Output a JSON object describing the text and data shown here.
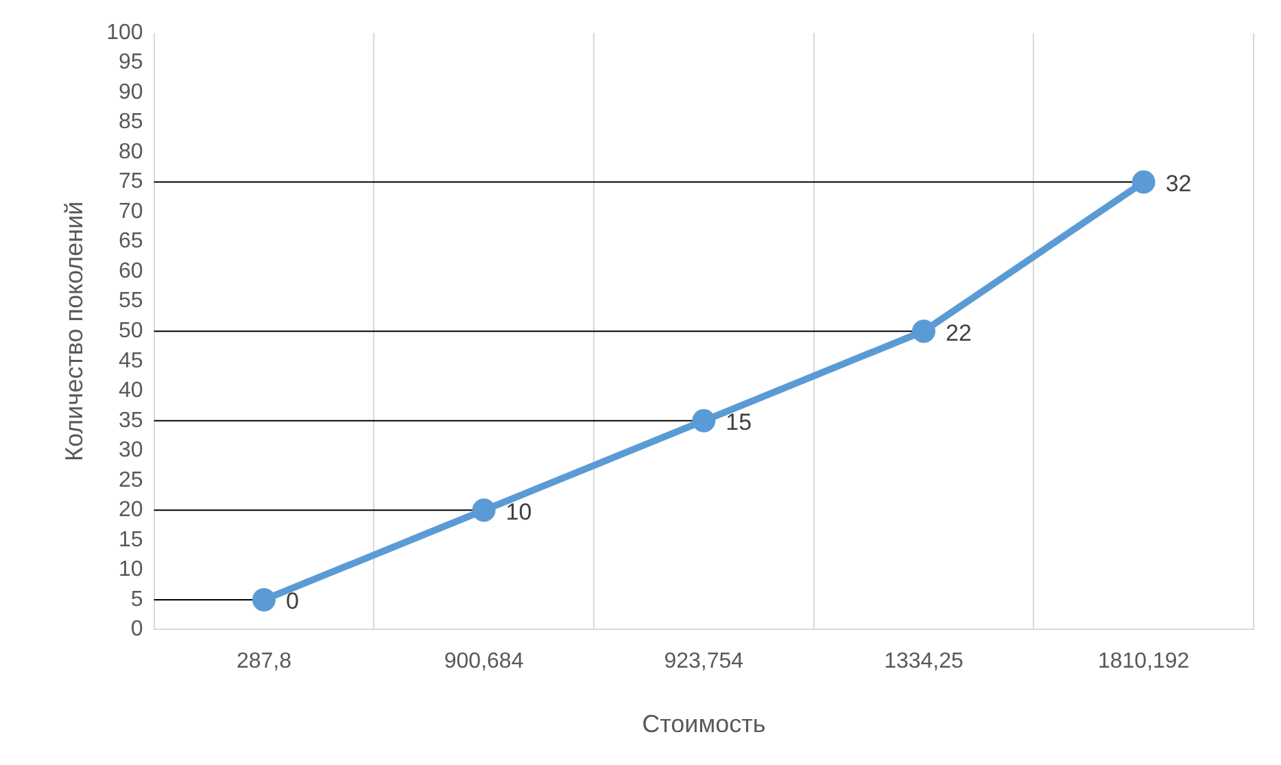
{
  "chart_data": {
    "type": "line",
    "xlabel": "Стоимость",
    "ylabel": "Количество поколений",
    "categories": [
      "287,8",
      "900,684",
      "923,754",
      "1334,25",
      "1810,192"
    ],
    "series": [
      {
        "color": "#5b9bd5",
        "values": [
          5,
          20,
          35,
          50,
          75
        ]
      }
    ],
    "annotations": [
      {
        "text": "0",
        "x": "287,8",
        "y": 5
      },
      {
        "text": "10",
        "x": "900,684",
        "y": 20
      },
      {
        "text": "15",
        "x": "923,754",
        "y": 35
      },
      {
        "text": "22",
        "x": "1334,25",
        "y": 50
      },
      {
        "text": "32",
        "x": "1810,192",
        "y": 75
      }
    ],
    "ylim": [
      0,
      100
    ],
    "yticks": [
      0,
      5,
      10,
      15,
      20,
      25,
      30,
      35,
      40,
      45,
      50,
      55,
      60,
      65,
      70,
      75,
      80,
      85,
      90,
      95,
      100
    ],
    "grid": "x",
    "legend": false,
    "marker": "circle",
    "line_style": "solid",
    "ref_lines": [
      {
        "axis": "y",
        "value": 5,
        "color": "#000000"
      },
      {
        "axis": "y",
        "value": 20,
        "color": "#000000"
      },
      {
        "axis": "y",
        "value": 35,
        "color": "#000000"
      },
      {
        "axis": "y",
        "value": 50,
        "color": "#000000"
      },
      {
        "axis": "y",
        "value": 75,
        "color": "#000000"
      }
    ]
  }
}
